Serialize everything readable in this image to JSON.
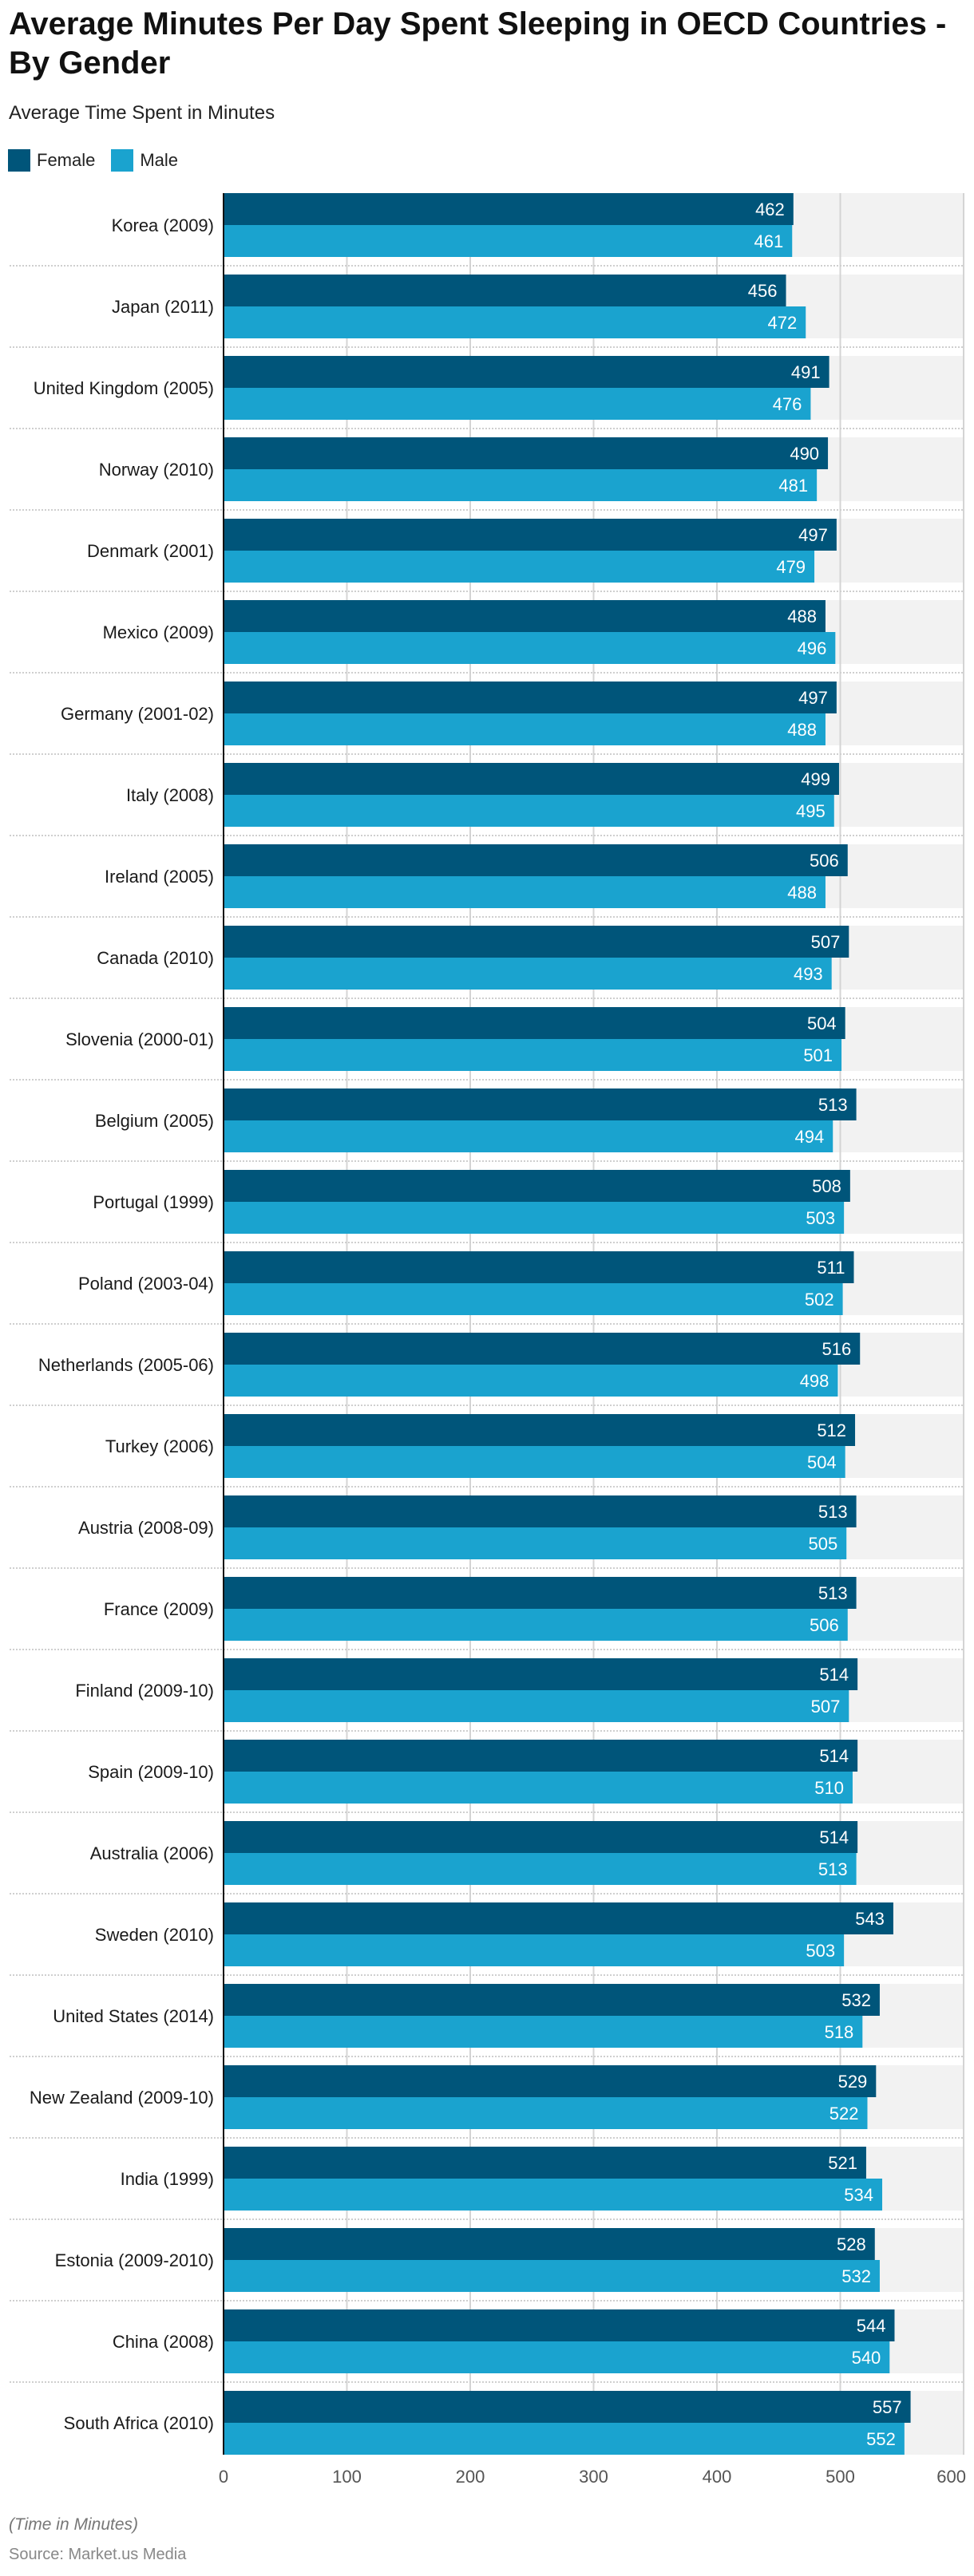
{
  "title": "Average Minutes Per Day Spent Sleeping in OECD Countries - By Gender",
  "subtitle": "Average Time Spent in Minutes",
  "footnote": "(Time in Minutes)",
  "source": "Source: Market.us Media",
  "colors": {
    "female": "#00557a",
    "male": "#1aa3cf",
    "band": "#f2f2f2",
    "grid": "#d4d4d4"
  },
  "chart_data": {
    "type": "bar",
    "orientation": "horizontal",
    "title": "Average Minutes Per Day Spent Sleeping in OECD Countries - By Gender",
    "subtitle": "Average Time Spent in Minutes",
    "xlabel": "(Time in Minutes)",
    "ylabel": "",
    "xlim": [
      0,
      600
    ],
    "ticks": [
      0,
      100,
      200,
      300,
      400,
      500,
      600
    ],
    "tick_labels": [
      "0",
      "100",
      "200",
      "300",
      "400",
      "500",
      "600"
    ],
    "grid": true,
    "legend": {
      "placement": "top-left",
      "entries": [
        "Female",
        "Male"
      ]
    },
    "categories": [
      "Korea (2009)",
      "Japan (2011)",
      "United Kingdom (2005)",
      "Norway (2010)",
      "Denmark (2001)",
      "Mexico (2009)",
      "Germany (2001-02)",
      "Italy (2008)",
      "Ireland (2005)",
      "Canada (2010)",
      "Slovenia (2000-01)",
      "Belgium (2005)",
      "Portugal (1999)",
      "Poland (2003-04)",
      "Netherlands (2005-06)",
      "Turkey (2006)",
      "Austria (2008-09)",
      "France (2009)",
      "Finland (2009-10)",
      "Spain (2009-10)",
      "Australia (2006)",
      "Sweden (2010)",
      "United States (2014)",
      "New Zealand (2009-10)",
      "India (1999)",
      "Estonia (2009-2010)",
      "China (2008)",
      "South Africa (2010)"
    ],
    "series": [
      {
        "name": "Female",
        "values": [
          462,
          456,
          491,
          490,
          497,
          488,
          497,
          499,
          506,
          507,
          504,
          513,
          508,
          511,
          516,
          512,
          513,
          513,
          514,
          514,
          514,
          543,
          532,
          529,
          521,
          528,
          544,
          557
        ]
      },
      {
        "name": "Male",
        "values": [
          461,
          472,
          476,
          481,
          479,
          496,
          488,
          495,
          488,
          493,
          501,
          494,
          503,
          502,
          498,
          504,
          505,
          506,
          507,
          510,
          513,
          503,
          518,
          522,
          534,
          532,
          540,
          552
        ]
      }
    ]
  }
}
